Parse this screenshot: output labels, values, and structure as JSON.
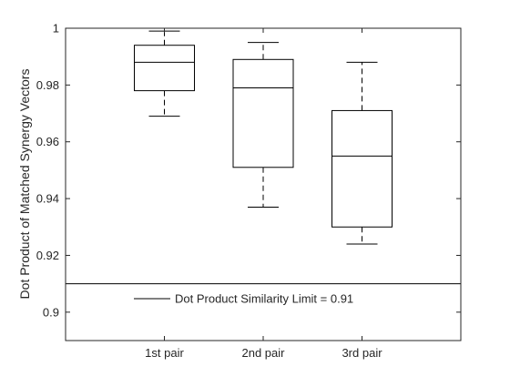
{
  "chart_data": {
    "type": "box",
    "title": "",
    "xlabel": "",
    "ylabel": "Dot Product of Matched Synergy Vectors",
    "ylim": [
      0.89,
      1.0
    ],
    "yticks": [
      0.9,
      0.92,
      0.94,
      0.96,
      0.98,
      1
    ],
    "ytick_labels": [
      "0.9",
      "0.92",
      "0.94",
      "0.96",
      "0.98",
      "1"
    ],
    "categories": [
      "1st pair",
      "2nd pair",
      "3rd pair"
    ],
    "boxes": [
      {
        "category": "1st pair",
        "whisker_low": 0.969,
        "q1": 0.978,
        "median": 0.988,
        "q3": 0.994,
        "whisker_high": 0.999
      },
      {
        "category": "2nd pair",
        "whisker_low": 0.937,
        "q1": 0.951,
        "median": 0.979,
        "q3": 0.989,
        "whisker_high": 0.995
      },
      {
        "category": "3rd pair",
        "whisker_low": 0.924,
        "q1": 0.93,
        "median": 0.955,
        "q3": 0.971,
        "whisker_high": 0.988
      }
    ],
    "reference_line": {
      "value": 0.91,
      "label": "Dot Product Similarity Limit = 0.91"
    },
    "legend_position": "bottom-center",
    "grid": false,
    "colors": {
      "box": "#000000",
      "axis": "#262626",
      "reference": "#000000"
    }
  }
}
